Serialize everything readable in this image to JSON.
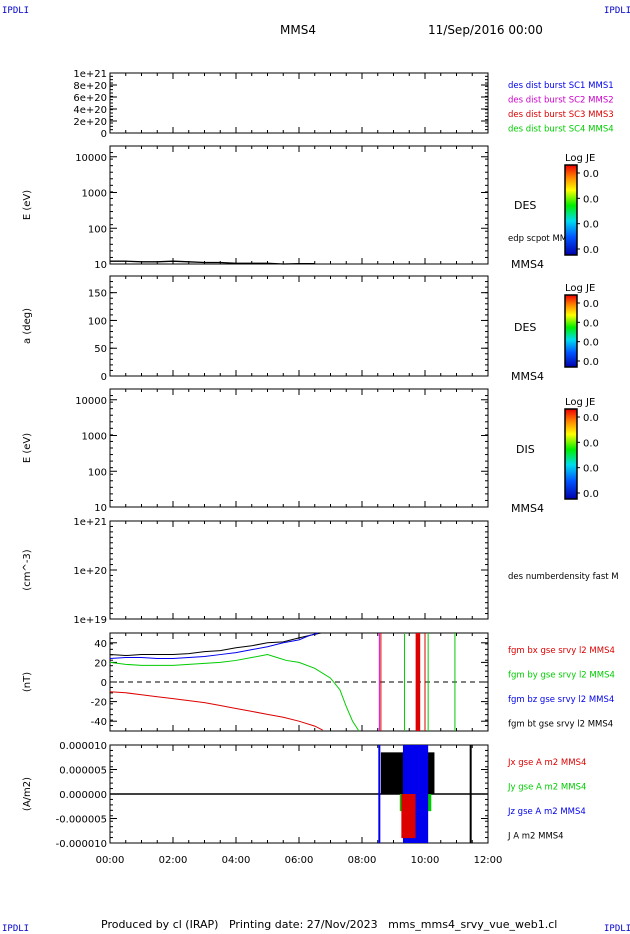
{
  "corner_tl": "IPDLI",
  "corner_tr": "IPDLI",
  "corner_bl": "IPDLI",
  "corner_br": "IPDLI",
  "header": {
    "spacecraft": "MMS4",
    "datetime": "11/Sep/2016 00:00"
  },
  "footer": "Produced by cl (IRAP)   Printing date: 27/Nov/2023   mms_mms4_srvy_vue_web1.cl",
  "colors": {
    "red": "#dd0000",
    "green": "#00cc00",
    "blue": "#0000ee",
    "magenta": "#cc00cc",
    "black": "#000000"
  },
  "colorbar_label": "Log JE",
  "colorbar_ticks": [
    "0.0",
    "0.0",
    "0.0",
    "0.0"
  ],
  "chart_data": [
    {
      "type": "line",
      "panel": "burst",
      "ylim": [
        0,
        1e+21
      ],
      "yticks": [
        "1e+21",
        "8e+20",
        "6e+20",
        "4e+20",
        "2e+20",
        "0"
      ],
      "legend": [
        {
          "text": "des dist burst SC1 MMS1",
          "color": "#0000ee"
        },
        {
          "text": "des dist burst SC2 MMS2",
          "color": "#cc00cc"
        },
        {
          "text": "des dist burst SC3 MMS3",
          "color": "#dd0000"
        },
        {
          "text": "des dist burst SC4 MMS4",
          "color": "#00cc00"
        }
      ],
      "dashed_zero": true
    },
    {
      "type": "heatmap",
      "panel": "des_energy",
      "ylabel": "E (eV)",
      "yscale": "log",
      "ylim": [
        10,
        20000
      ],
      "yticks": [
        "10000",
        "1000",
        "100",
        "10"
      ],
      "label": "DES",
      "sublabel": "edp scpot MMS4",
      "bottom_label": "MMS4",
      "scpot_series": {
        "x": [
          0.0,
          0.5,
          1.0,
          1.5,
          2.0,
          2.5,
          3.0,
          3.5,
          4.0,
          4.5,
          5.0,
          5.5,
          6.0,
          6.5
        ],
        "y": [
          12.0,
          12.0,
          11.5,
          11.5,
          12.0,
          11.5,
          11.0,
          11.0,
          10.5,
          10.5,
          10.5,
          10.0,
          10.2,
          10.2
        ]
      },
      "colorbar": true
    },
    {
      "type": "heatmap",
      "panel": "des_pitch",
      "ylabel": "a (deg)",
      "ylim": [
        0,
        180
      ],
      "yticks": [
        "150",
        "100",
        "50",
        "0"
      ],
      "label": "DES",
      "bottom_label": "MMS4",
      "colorbar": true
    },
    {
      "type": "heatmap",
      "panel": "dis_energy",
      "ylabel": "E (eV)",
      "yscale": "log",
      "ylim": [
        10,
        20000
      ],
      "yticks": [
        "10000",
        "1000",
        "100",
        "10"
      ],
      "label": "DIS",
      "bottom_label": "MMS4",
      "colorbar": true
    },
    {
      "type": "line",
      "panel": "density",
      "ylabel": "(cm^-3)",
      "yscale": "log",
      "ylim": [
        1e+19,
        1e+21
      ],
      "yticks": [
        "1e+21",
        "1e+20",
        "1e+19"
      ],
      "legend": [
        {
          "text": "des numberdensity fast M",
          "color": "#000000"
        }
      ]
    },
    {
      "type": "line",
      "panel": "fgm",
      "ylabel": "(nT)",
      "ylim": [
        -50,
        50
      ],
      "yticks": [
        "40",
        "20",
        "0",
        "-20",
        "-40"
      ],
      "dashed_zero": true,
      "legend": [
        {
          "text": "fgm bx gse srvy l2 MMS4",
          "color": "#dd0000"
        },
        {
          "text": "fgm by gse srvy l2 MMS4",
          "color": "#00cc00"
        },
        {
          "text": "fgm bz gse srvy l2 MMS4",
          "color": "#0000ee"
        },
        {
          "text": "fgm bt gse srvy l2 MMS4",
          "color": "#000000"
        }
      ],
      "series": [
        {
          "name": "fgm bt gse srvy l2 MMS4",
          "color": "#000000",
          "x": [
            0.0,
            0.5,
            1.0,
            1.5,
            2.0,
            2.5,
            3.0,
            3.5,
            4.0,
            4.5,
            5.0,
            5.5,
            6.0,
            6.4,
            6.7
          ],
          "y": [
            28,
            27,
            28,
            28,
            28,
            29,
            31,
            32,
            35,
            37,
            40,
            41,
            45,
            48,
            50
          ]
        },
        {
          "name": "fgm bz gse srvy l2 MMS4",
          "color": "#0000ee",
          "x": [
            0.0,
            0.5,
            1.0,
            1.5,
            2.0,
            2.5,
            3.0,
            3.5,
            4.0,
            4.5,
            5.0,
            5.5,
            6.0,
            6.3,
            6.6
          ],
          "y": [
            24,
            25,
            25,
            24,
            24,
            25,
            26,
            28,
            30,
            33,
            36,
            40,
            43,
            47,
            50
          ]
        },
        {
          "name": "fgm by gse srvy l2 MMS4",
          "color": "#00cc00",
          "x": [
            0.0,
            0.5,
            1.0,
            1.5,
            2.0,
            2.5,
            3.0,
            3.5,
            4.0,
            4.5,
            5.0,
            5.3,
            5.6,
            6.0,
            6.5,
            7.0,
            7.3,
            7.5,
            7.7,
            7.9
          ],
          "y": [
            20,
            18,
            17,
            17,
            17,
            18,
            19,
            20,
            22,
            25,
            28,
            25,
            22,
            20,
            14,
            4,
            -8,
            -25,
            -40,
            -50
          ]
        },
        {
          "name": "fgm bx gse srvy l2 MMS4",
          "color": "#dd0000",
          "x": [
            0.0,
            0.5,
            1.0,
            1.5,
            2.0,
            2.5,
            3.0,
            3.5,
            4.0,
            4.5,
            5.0,
            5.5,
            6.0,
            6.5,
            6.75
          ],
          "y": [
            -10,
            -11,
            -13,
            -15,
            -17,
            -19,
            -21,
            -24,
            -27,
            -30,
            -33,
            -36,
            -40,
            -45,
            -49
          ]
        }
      ]
    },
    {
      "type": "line",
      "panel": "current",
      "ylabel": "(A/m2)",
      "ylim": [
        -1e-05,
        1e-05
      ],
      "yticks": [
        "0.000010",
        "0.000005",
        "0.000000",
        "-0.000005",
        "-0.000010"
      ],
      "legend": [
        {
          "text": "Jx gse A m2 MMS4",
          "color": "#dd0000"
        },
        {
          "text": "Jy gse A m2 MMS4",
          "color": "#00cc00"
        },
        {
          "text": "Jz gse A m2 MMS4",
          "color": "#0000ee"
        },
        {
          "text": "J A m2 MMS4",
          "color": "#000000"
        }
      ]
    }
  ],
  "xaxis": {
    "xlim": [
      0,
      12
    ],
    "ticks": [
      "00:00",
      "02:00",
      "04:00",
      "06:00",
      "08:00",
      "10:00",
      "12:00"
    ]
  }
}
